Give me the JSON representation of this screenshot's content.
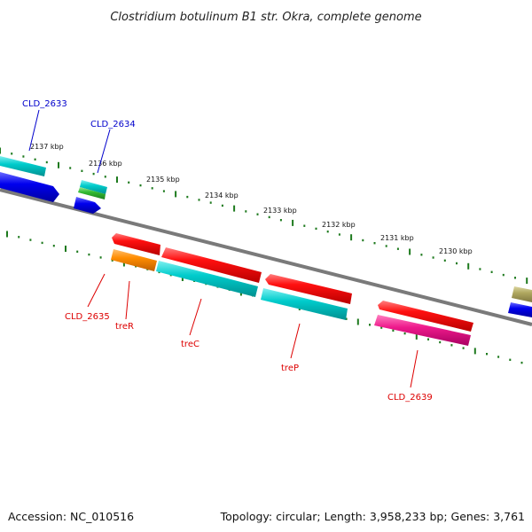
{
  "title": "Clostridium botulinum B1 str. Okra, complete genome",
  "footer": {
    "accession": "Accession: NC_010516",
    "summary": "Topology: circular; Length: 3,958,233 bp; Genes: 3,761"
  },
  "scale": {
    "ticks": [
      "2137 kbp",
      "2136 kbp",
      "2135 kbp",
      "2134 kbp",
      "2133 kbp",
      "2132 kbp",
      "2131 kbp",
      "2130 kbp"
    ]
  },
  "genes": {
    "CLD_2633": "CLD_2633",
    "CLD_2634": "CLD_2634",
    "CLD_2635": "CLD_2635",
    "treR": "treR",
    "treC": "treC",
    "treP": "treP",
    "CLD_2639": "CLD_2639"
  },
  "colors": {
    "backbone": "#808080",
    "tick": "#1e7a1e",
    "label_blue": "#0000cc",
    "label_red": "#dd0000",
    "cds_red": "#ee0000",
    "cds_cyan": "#00c8c8",
    "cds_orange": "#ff8c00",
    "cds_blue": "#0000ee",
    "cds_green": "#33bb33",
    "cds_magenta": "#ee1a8c",
    "cds_olive": "#b0a860"
  }
}
